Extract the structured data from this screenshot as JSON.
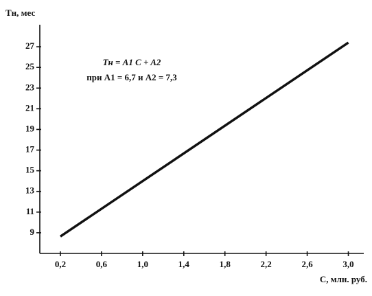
{
  "chart_data": {
    "type": "line",
    "y_label": "Tн, мес",
    "x_label": "C, млн. руб.",
    "annotation": [
      "Tн = A1 C + A2",
      "при A1 = 6,7  и  A2 = 7,3"
    ],
    "x": [
      0.2,
      3.0
    ],
    "values": [
      8.64,
      27.4
    ],
    "color": "#111111",
    "xlim": [
      0,
      3.15
    ],
    "ylim": [
      7,
      29
    ],
    "xticks": [
      {
        "value": 0.2,
        "label": "0,2"
      },
      {
        "value": 0.6,
        "label": "0,6"
      },
      {
        "value": 1.0,
        "label": "1,0"
      },
      {
        "value": 1.4,
        "label": "1,4"
      },
      {
        "value": 1.8,
        "label": "1,8"
      },
      {
        "value": 2.2,
        "label": "2,2"
      },
      {
        "value": 2.6,
        "label": "2,6"
      },
      {
        "value": 3.0,
        "label": "3,0"
      }
    ],
    "yticks": [
      9,
      11,
      13,
      15,
      17,
      19,
      21,
      23,
      25,
      27
    ]
  }
}
